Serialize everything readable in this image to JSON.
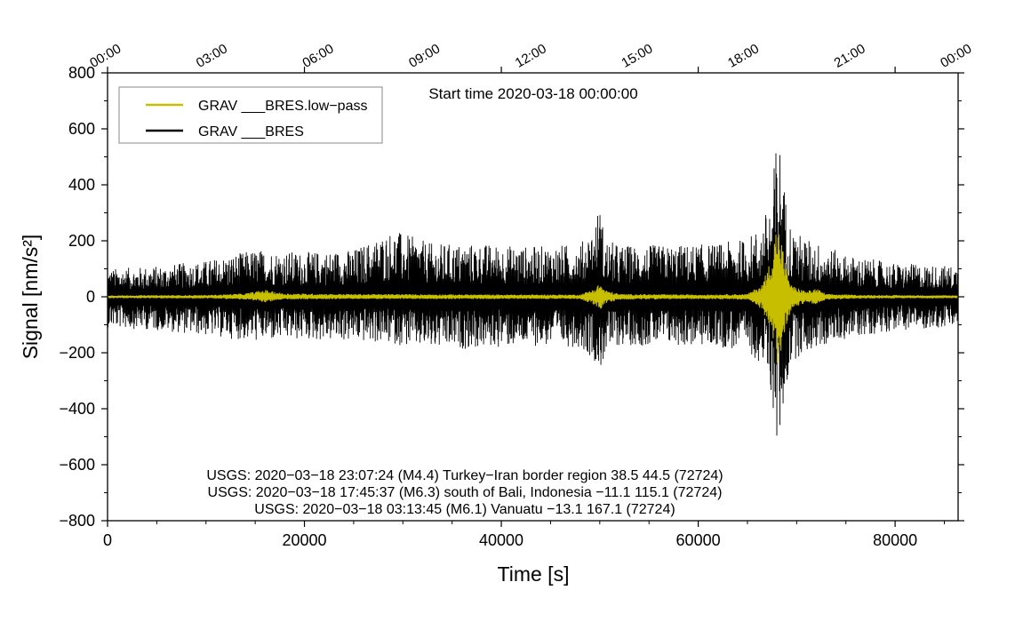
{
  "chart_data": {
    "type": "line",
    "title": "Start time 2020-03-18 00:00:00",
    "xlabel": "Time [s]",
    "ylabel": "Signal [nm/s²]",
    "xlim": [
      0,
      86400
    ],
    "ylim": [
      -800,
      800
    ],
    "grid": false,
    "x_ticks": [
      0,
      20000,
      40000,
      60000,
      80000
    ],
    "x_tick_labels": [
      "0",
      "20000",
      "40000",
      "60000",
      "80000"
    ],
    "y_ticks": [
      800,
      600,
      400,
      200,
      0,
      -200,
      -400,
      -600,
      -800
    ],
    "y_tick_labels": [
      "800",
      "600",
      "400",
      "200",
      "0",
      "−200",
      "−400",
      "−600",
      "−800"
    ],
    "top_ticks": [
      0,
      10800,
      21600,
      32400,
      43200,
      54000,
      64800,
      75600,
      86400
    ],
    "top_tick_labels": [
      "00:00",
      "03:00",
      "06:00",
      "09:00",
      "12:00",
      "15:00",
      "18:00",
      "21:00",
      "00:00"
    ],
    "legend": {
      "position": "top-left",
      "entries": [
        {
          "label": "GRAV ___BRES.low−pass",
          "color": "#c8be00"
        },
        {
          "label": "GRAV ___BRES",
          "color": "#000000"
        }
      ]
    },
    "annotations": [
      "USGS: 2020−03−18 23:07:24 (M4.4) Turkey−Iran border region 38.5 44.5 (72724)",
      "USGS: 2020−03−18 17:45:37 (M6.3) south of Bali, Indonesia −11.1 115.1 (72724)",
      "USGS: 2020−03−18 03:13:45 (M6.1) Vanuatu −13.1 167.1 (72724)"
    ],
    "series": [
      {
        "name": "GRAV ___BRES",
        "color": "#000000",
        "x": [
          0,
          5000,
          10000,
          15000,
          20000,
          25000,
          29000,
          33000,
          38000,
          43000,
          48000,
          49500,
          50000,
          50500,
          52000,
          57000,
          62000,
          65000,
          66500,
          67500,
          68000,
          68400,
          68800,
          69500,
          71000,
          72500,
          75000,
          80000,
          86400
        ],
        "max": [
          100,
          110,
          130,
          170,
          160,
          170,
          240,
          190,
          190,
          180,
          190,
          260,
          340,
          210,
          185,
          185,
          190,
          210,
          260,
          380,
          595,
          540,
          380,
          240,
          210,
          190,
          150,
          120,
          110
        ],
        "min": [
          -110,
          -120,
          -140,
          -160,
          -155,
          -160,
          -170,
          -190,
          -185,
          -175,
          -180,
          -230,
          -280,
          -210,
          -175,
          -175,
          -180,
          -200,
          -240,
          -370,
          -545,
          -500,
          -360,
          -230,
          -200,
          -180,
          -150,
          -120,
          -110
        ]
      },
      {
        "name": "GRAV ___BRES.low−pass",
        "color": "#c8be00",
        "x": [
          0,
          10000,
          14000,
          16000,
          18000,
          25000,
          40000,
          48000,
          49500,
          50000,
          50500,
          52000,
          60000,
          65000,
          66500,
          67500,
          68000,
          68400,
          68800,
          69500,
          71000,
          72000,
          72500,
          73000,
          77000,
          86400
        ],
        "max": [
          5,
          6,
          12,
          25,
          12,
          10,
          8,
          8,
          30,
          50,
          25,
          10,
          8,
          10,
          45,
          150,
          270,
          220,
          130,
          40,
          20,
          30,
          20,
          10,
          6,
          5
        ],
        "min": [
          -5,
          -6,
          -10,
          -20,
          -10,
          -8,
          -8,
          -8,
          -30,
          -50,
          -25,
          -10,
          -8,
          -10,
          -45,
          -150,
          -250,
          -200,
          -120,
          -40,
          -20,
          -30,
          -20,
          -10,
          -6,
          -5
        ]
      }
    ]
  }
}
